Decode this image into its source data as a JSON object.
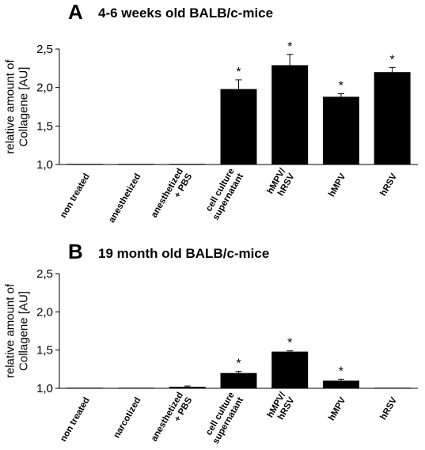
{
  "chart_data": [
    {
      "type": "bar",
      "panel": "A",
      "title": "4-6 weeks old BALB/c-mice",
      "ylabel": [
        "relative amount of",
        "Collagene  [AU]"
      ],
      "ylim": [
        1.0,
        2.5
      ],
      "yticks": [
        "1,0",
        "1,5",
        "2,0",
        "2,5"
      ],
      "ytick_values": [
        1.0,
        1.5,
        2.0,
        2.5
      ],
      "categories": [
        [
          "non treated"
        ],
        [
          "anesthetized"
        ],
        [
          "anesthetized",
          "+ PBS"
        ],
        [
          "cell culture",
          "supernatant"
        ],
        [
          "hMPV/",
          "hRSV"
        ],
        [
          "hMPV"
        ],
        [
          "hRSV"
        ]
      ],
      "values": [
        1.0,
        1.0,
        1.0,
        1.98,
        2.29,
        1.88,
        2.2
      ],
      "errors": [
        0.0,
        0.0,
        0.0,
        0.12,
        0.14,
        0.04,
        0.06
      ],
      "significance": [
        "",
        "",
        "",
        "*",
        "*",
        "*",
        "*"
      ],
      "bar_color": "#000000"
    },
    {
      "type": "bar",
      "panel": "B",
      "title": "19 month old BALB/c-mice",
      "ylabel": [
        "relative amount of",
        "Collagene  [AU]"
      ],
      "ylim": [
        1.0,
        2.5
      ],
      "yticks": [
        "1,0",
        "1,5",
        "2,0",
        "2,5"
      ],
      "ytick_values": [
        1.0,
        1.5,
        2.0,
        2.5
      ],
      "categories": [
        [
          "non treated"
        ],
        [
          "narcotized"
        ],
        [
          "anesthetized",
          "+ PBS"
        ],
        [
          "cell culture",
          "supernatant"
        ],
        [
          "hMPV/",
          "hRSV"
        ],
        [
          "hMPV"
        ],
        [
          "hRSV"
        ]
      ],
      "values": [
        1.0,
        1.0,
        1.02,
        1.2,
        1.48,
        1.1,
        1.0
      ],
      "errors": [
        0.0,
        0.0,
        0.01,
        0.02,
        0.01,
        0.02,
        0.0
      ],
      "significance": [
        "",
        "",
        "",
        "*",
        "*",
        "*",
        ""
      ],
      "bar_color": "#000000"
    }
  ]
}
